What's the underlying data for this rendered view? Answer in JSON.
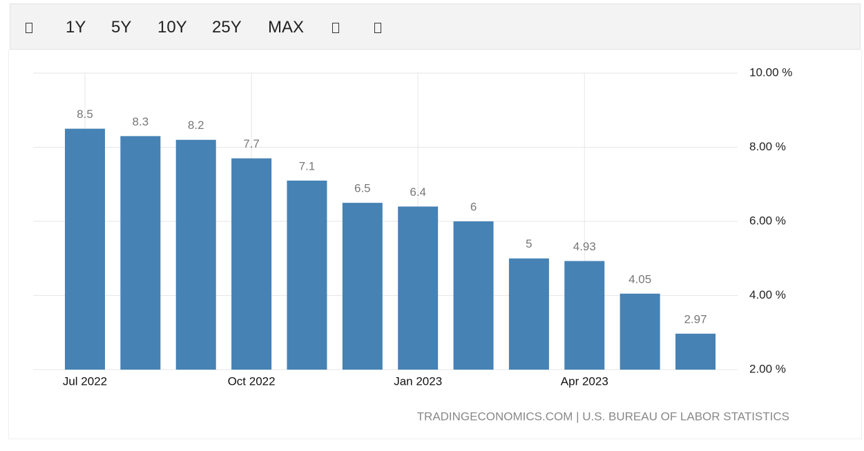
{
  "toolbar": {
    "buttons": [
      "1Y",
      "5Y",
      "10Y",
      "25Y",
      "MAX"
    ]
  },
  "chart_data": {
    "type": "bar",
    "categories": [
      "Jul 2022",
      null,
      null,
      "Oct 2022",
      null,
      null,
      "Jan 2023",
      null,
      null,
      "Apr 2023",
      null,
      null
    ],
    "values": [
      8.5,
      8.3,
      8.2,
      7.7,
      7.1,
      6.5,
      6.4,
      6,
      5,
      4.93,
      4.05,
      2.97
    ],
    "color": "#4682b4",
    "ylim": [
      2,
      10
    ],
    "yticks": [
      {
        "value": 2,
        "label": "2.00 %"
      },
      {
        "value": 4,
        "label": "4.00 %"
      },
      {
        "value": 6,
        "label": "6.00 %"
      },
      {
        "value": 8,
        "label": "8.00 %"
      },
      {
        "value": 10,
        "label": "10.00 %"
      }
    ],
    "grid": true,
    "source": "TRADINGECONOMICS.COM | U.S. BUREAU OF LABOR STATISTICS"
  }
}
